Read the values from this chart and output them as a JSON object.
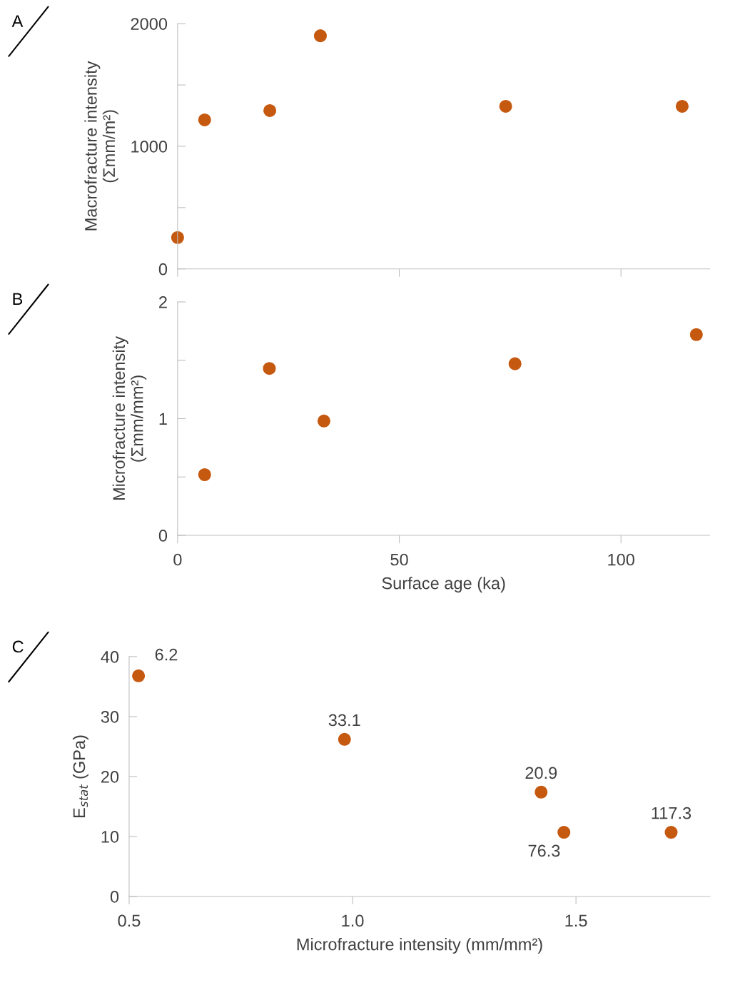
{
  "chart_data": [
    {
      "type": "scatter",
      "ylabel": "Macrofracture intensity\n(Σmm/m²)",
      "annotations": [
        "A"
      ],
      "series": [
        {
          "color": "#c5590f",
          "x": [
            0,
            6.1,
            20.8,
            32.2,
            74.0,
            113.8
          ],
          "values": [
            256,
            1215,
            1291,
            1901,
            1326,
            1326
          ]
        }
      ],
      "xlim": [
        0,
        120
      ],
      "xticks": [
        {
          "value": 0,
          "label": null
        },
        {
          "value": 50,
          "label": null
        },
        {
          "value": 100,
          "label": null
        }
      ],
      "ylim": [
        0,
        2000
      ],
      "yticks": [
        0,
        {
          "value": 500,
          "label": null
        },
        1000,
        {
          "value": 1500,
          "label": null
        },
        2000
      ],
      "tick_labels": "y",
      "marker": "circle"
    },
    {
      "type": "scatter",
      "xlabel": "Surface age (ka)",
      "ylabel": "Microfracture intensity\n(Σmm/mm²)",
      "annotations": [
        "B"
      ],
      "series": [
        {
          "color": "#c5590f",
          "x": [
            6.1,
            20.7,
            33.0,
            76.1,
            117.0
          ],
          "values": [
            0.52,
            1.43,
            0.98,
            1.47,
            1.72
          ]
        }
      ],
      "xlim": [
        0,
        120
      ],
      "xticks": [
        0,
        50,
        100
      ],
      "ylim": [
        0,
        2
      ],
      "yticks": [
        0,
        {
          "value": 0.5,
          "label": null
        },
        1,
        {
          "value": 1.5,
          "label": null
        },
        2
      ],
      "marker": "circle"
    },
    {
      "type": "scatter",
      "xlabel": "Microfracture intensity (mm/mm²)",
      "ylabel": "E$_{stat}$ (GPa)",
      "annotations": [
        "C",
        {
          "text": "6.2",
          "x": 0.521,
          "y": 36.8
        },
        {
          "text": "33.1",
          "x": 0.982,
          "y": 26.2
        },
        {
          "text": "20.9",
          "x": 1.422,
          "y": 17.4
        },
        {
          "text": "76.3",
          "x": 1.473,
          "y": 10.7
        },
        {
          "text": "117.3",
          "x": 1.713,
          "y": 10.7
        }
      ],
      "series": [
        {
          "color": "#c5590f",
          "x": [
            0.521,
            0.982,
            1.422,
            1.473,
            1.713
          ],
          "values": [
            36.8,
            26.2,
            17.4,
            10.7,
            10.7
          ]
        }
      ],
      "xlim": [
        0.5,
        1.8
      ],
      "xticks": [
        {
          "value": 0.5,
          "label": "0.5"
        },
        {
          "value": 1.0,
          "label": "1.0"
        },
        {
          "value": 1.5,
          "label": "1.5"
        }
      ],
      "ylim": [
        0,
        40
      ],
      "yticks": [
        0,
        10,
        20,
        30,
        40
      ],
      "marker": "circle"
    }
  ]
}
